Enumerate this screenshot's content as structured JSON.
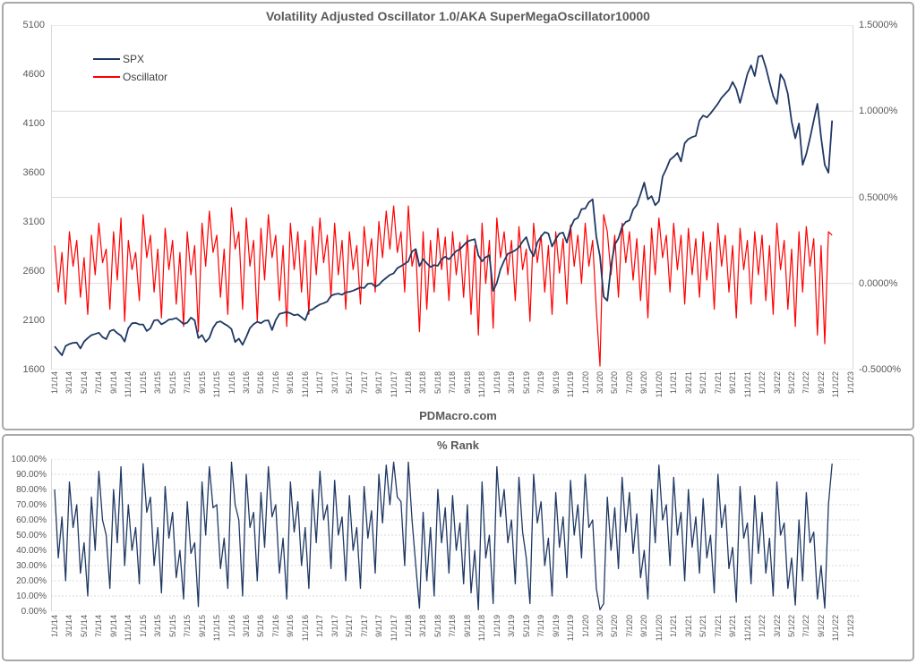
{
  "page": {
    "watermark": "PDMacro.com",
    "colors": {
      "spx_line": "#1f3864",
      "oscillator_line": "#ff0000",
      "rank_line": "#1f3864",
      "grid": "#d9d9d9",
      "axis_text": "#595959",
      "box_border": "#a9a9a9"
    }
  },
  "x_axis": {
    "labels": [
      "1/1/14",
      "3/1/14",
      "5/1/14",
      "7/1/14",
      "9/1/14",
      "11/1/14",
      "1/1/15",
      "3/1/15",
      "5/1/15",
      "7/1/15",
      "9/1/15",
      "11/1/15",
      "1/1/16",
      "3/1/16",
      "5/1/16",
      "7/1/16",
      "9/1/16",
      "11/1/16",
      "1/1/17",
      "3/1/17",
      "5/1/17",
      "7/1/17",
      "9/1/17",
      "11/1/17",
      "1/1/18",
      "3/1/18",
      "5/1/18",
      "7/1/18",
      "9/1/18",
      "11/1/18",
      "1/1/19",
      "3/1/19",
      "5/1/19",
      "7/1/19",
      "9/1/19",
      "11/1/19",
      "1/1/20",
      "3/1/20",
      "5/1/20",
      "7/1/20",
      "9/1/20",
      "11/1/20",
      "1/1/21",
      "3/1/21",
      "5/1/21",
      "7/1/21",
      "9/1/21",
      "11/1/21",
      "1/1/22",
      "3/1/22",
      "5/1/22",
      "7/1/22",
      "9/1/22",
      "11/1/22",
      "1/1/23"
    ],
    "axis_span_months": 108,
    "data_span_months": 105.5
  },
  "chart_data": [
    {
      "type": "line",
      "title": "Volatility Adjusted Oscillator 1.0/AKA SuperMegaOscillator10000",
      "legend_position": "top-left-inside",
      "grid": "horizontal-at-right-axis-ticks",
      "left_axis": {
        "min": 1600,
        "max": 5100,
        "ticks": [
          "5100",
          "4600",
          "4100",
          "3600",
          "3100",
          "2600",
          "2100",
          "1600"
        ]
      },
      "right_axis": {
        "min": -0.5,
        "max": 1.5,
        "ticks": [
          "1.5000%",
          "1.0000%",
          "0.5000%",
          "0.0000%",
          "-0.5000%"
        ]
      },
      "points_per_month": 2,
      "series": [
        {
          "name": "SPX",
          "axis": "left",
          "color": "#1f3864",
          "values": [
            1835,
            1790,
            1745,
            1840,
            1860,
            1872,
            1875,
            1815,
            1885,
            1920,
            1950,
            1962,
            1975,
            1930,
            1910,
            1990,
            2005,
            1970,
            1945,
            1885,
            2020,
            2070,
            2075,
            2058,
            2058,
            1992,
            2020,
            2100,
            2105,
            2060,
            2080,
            2108,
            2112,
            2125,
            2095,
            2063,
            2077,
            2128,
            2100,
            1920,
            1950,
            1882,
            1923,
            2023,
            2080,
            2090,
            2065,
            2044,
            2012,
            1880,
            1915,
            1852,
            1932,
            2022,
            2062,
            2085,
            2072,
            2096,
            2100,
            2002,
            2103,
            2165,
            2175,
            2185,
            2172,
            2152,
            2160,
            2132,
            2102,
            2200,
            2212,
            2240,
            2262,
            2275,
            2292,
            2350,
            2365,
            2372,
            2360,
            2385,
            2390,
            2402,
            2418,
            2435,
            2428,
            2472,
            2476,
            2442,
            2462,
            2502,
            2532,
            2562,
            2578,
            2630,
            2652,
            2674,
            2700,
            2800,
            2825,
            2650,
            2722,
            2680,
            2642,
            2662,
            2655,
            2722,
            2746,
            2720,
            2762,
            2805,
            2822,
            2862,
            2902,
            2915,
            2925,
            2760,
            2700,
            2742,
            2762,
            2400,
            2480,
            2620,
            2706,
            2776,
            2792,
            2812,
            2842,
            2902,
            2946,
            2820,
            2752,
            2892,
            2952,
            2996,
            2982,
            2850,
            2926,
            2982,
            2992,
            2890,
            3040,
            3122,
            3142,
            3230,
            3235,
            3300,
            3330,
            2950,
            2750,
            2340,
            2300,
            2650,
            2870,
            2932,
            3052,
            3100,
            3116,
            3226,
            3272,
            3382,
            3500,
            3330,
            3362,
            3270,
            3310,
            3560,
            3640,
            3732,
            3762,
            3800,
            3715,
            3900,
            3942,
            3962,
            3975,
            4130,
            4182,
            4162,
            4202,
            4252,
            4302,
            4362,
            4402,
            4442,
            4522,
            4450,
            4310,
            4452,
            4602,
            4690,
            4582,
            4780,
            4790,
            4670,
            4520,
            4380,
            4300,
            4600,
            4540,
            4400,
            4120,
            3950,
            4100,
            3680,
            3790,
            3950,
            4130,
            4300,
            3960,
            3680,
            3600,
            4130
          ]
        },
        {
          "name": "Oscillator",
          "axis": "right",
          "color": "#ff0000",
          "values": [
            0.22,
            -0.05,
            0.18,
            -0.12,
            0.3,
            0.1,
            0.25,
            -0.08,
            0.15,
            -0.18,
            0.28,
            0.05,
            0.35,
            0.12,
            0.2,
            -0.15,
            0.3,
            0.02,
            0.38,
            -0.22,
            0.25,
            0.08,
            0.18,
            -0.1,
            0.4,
            0.15,
            0.28,
            -0.05,
            0.2,
            -0.2,
            0.32,
            0.08,
            0.25,
            -0.12,
            0.18,
            -0.25,
            0.3,
            0.05,
            0.22,
            -0.28,
            0.35,
            0.1,
            0.42,
            0.18,
            0.28,
            -0.08,
            0.2,
            -0.18,
            0.44,
            0.2,
            0.3,
            -0.15,
            0.38,
            0.1,
            0.25,
            -0.22,
            0.32,
            0.02,
            0.4,
            0.15,
            0.28,
            -0.1,
            0.22,
            -0.25,
            0.35,
            0.08,
            0.3,
            -0.05,
            0.25,
            -0.18,
            0.33,
            0.05,
            0.38,
            0.12,
            0.28,
            -0.08,
            0.35,
            0.05,
            0.25,
            -0.15,
            0.3,
            0.08,
            0.22,
            -0.12,
            0.33,
            0.1,
            0.26,
            -0.05,
            0.36,
            0.15,
            0.42,
            0.2,
            0.45,
            0.18,
            0.3,
            -0.05,
            0.45,
            0.1,
            0.2,
            -0.28,
            0.3,
            -0.15,
            0.25,
            -0.05,
            0.32,
            0.08,
            0.27,
            -0.1,
            0.3,
            0.05,
            0.24,
            -0.08,
            0.28,
            -0.18,
            0.22,
            -0.3,
            0.35,
            0.0,
            0.25,
            -0.26,
            0.38,
            0.15,
            0.3,
            0.05,
            0.25,
            -0.1,
            0.33,
            0.08,
            0.2,
            -0.22,
            0.35,
            0.12,
            0.28,
            -0.05,
            0.22,
            -0.18,
            0.3,
            0.06,
            0.26,
            -0.12,
            0.34,
            0.1,
            0.28,
            0.0,
            0.35,
            0.1,
            0.25,
            -0.15,
            -0.48,
            0.4,
            0.3,
            0.05,
            0.28,
            -0.08,
            0.35,
            0.12,
            0.3,
            0.02,
            0.26,
            -0.1,
            0.22,
            -0.2,
            0.32,
            0.05,
            0.38,
            0.15,
            0.28,
            -0.05,
            0.35,
            0.08,
            0.28,
            -0.12,
            0.32,
            0.05,
            0.26,
            -0.08,
            0.3,
            0.02,
            0.24,
            -0.15,
            0.35,
            0.1,
            0.28,
            -0.05,
            0.22,
            -0.2,
            0.32,
            0.08,
            0.25,
            -0.12,
            0.3,
            0.05,
            0.28,
            -0.1,
            0.22,
            -0.18,
            0.35,
            0.08,
            0.25,
            -0.15,
            0.2,
            -0.25,
            0.3,
            -0.05,
            0.33,
            0.1,
            0.26,
            -0.3,
            0.22,
            -0.35,
            0.3,
            0.28
          ]
        }
      ]
    },
    {
      "type": "line",
      "title": "% Rank",
      "grid": "horizontal-dashed-every-10pct",
      "y_axis": {
        "min": 0,
        "max": 100,
        "ticks": [
          "100.00%",
          "90.00%",
          "80.00%",
          "70.00%",
          "60.00%",
          "50.00%",
          "40.00%",
          "30.00%",
          "20.00%",
          "10.00%",
          "0.00%"
        ]
      },
      "points_per_month": 2,
      "series": [
        {
          "name": "% Rank",
          "color": "#1f3864",
          "values": [
            80,
            35,
            62,
            20,
            85,
            55,
            70,
            25,
            45,
            10,
            75,
            40,
            92,
            60,
            50,
            15,
            80,
            45,
            95,
            30,
            70,
            40,
            55,
            18,
            97,
            65,
            75,
            30,
            55,
            12,
            82,
            48,
            65,
            22,
            40,
            8,
            72,
            38,
            45,
            3,
            85,
            50,
            95,
            68,
            70,
            28,
            48,
            15,
            98,
            70,
            60,
            10,
            90,
            55,
            65,
            20,
            78,
            42,
            95,
            62,
            70,
            25,
            48,
            8,
            85,
            52,
            72,
            30,
            55,
            15,
            80,
            45,
            92,
            60,
            70,
            28,
            86,
            50,
            62,
            20,
            76,
            40,
            55,
            15,
            82,
            48,
            66,
            25,
            90,
            58,
            96,
            70,
            98,
            75,
            72,
            30,
            98,
            60,
            30,
            2,
            65,
            20,
            55,
            10,
            80,
            45,
            68,
            25,
            76,
            40,
            58,
            18,
            70,
            12,
            40,
            1,
            85,
            35,
            50,
            5,
            95,
            62,
            80,
            45,
            60,
            18,
            88,
            52,
            35,
            5,
            90,
            58,
            72,
            30,
            48,
            10,
            78,
            42,
            62,
            22,
            86,
            50,
            70,
            35,
            90,
            55,
            60,
            15,
            1,
            5,
            75,
            40,
            68,
            28,
            88,
            52,
            78,
            38,
            64,
            22,
            40,
            8,
            80,
            45,
            96,
            60,
            70,
            30,
            88,
            50,
            65,
            20,
            80,
            42,
            62,
            25,
            74,
            35,
            50,
            12,
            90,
            55,
            70,
            28,
            42,
            6,
            82,
            48,
            58,
            18,
            76,
            38,
            65,
            25,
            48,
            10,
            85,
            50,
            58,
            15,
            35,
            4,
            60,
            20,
            78,
            45,
            52,
            8,
            30,
            2,
            70,
            97
          ]
        }
      ]
    }
  ]
}
